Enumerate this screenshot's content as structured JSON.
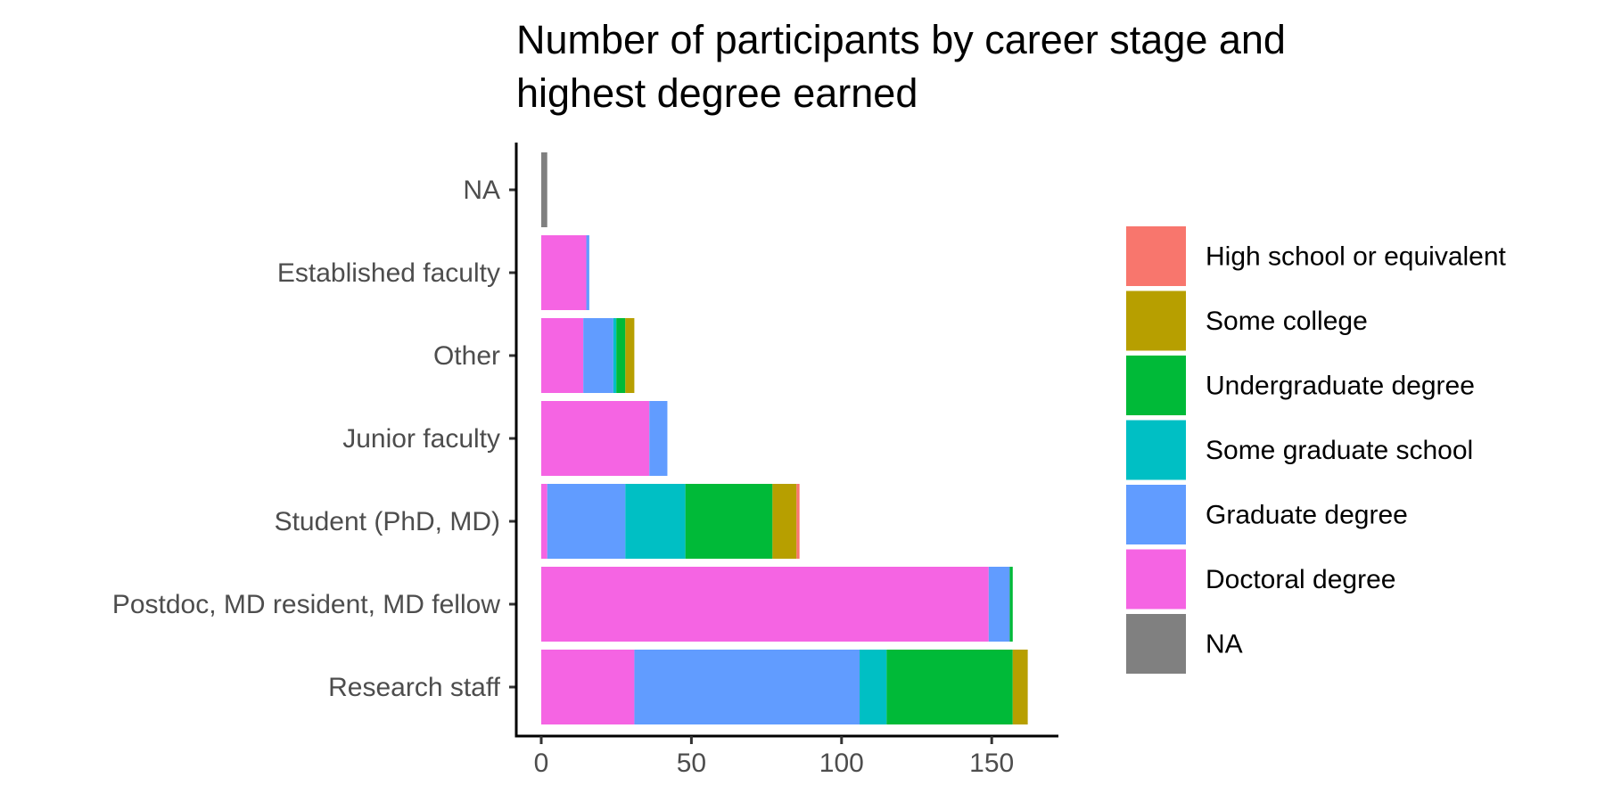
{
  "chart_data": {
    "type": "bar",
    "orientation": "horizontal",
    "stacked": true,
    "title": "Number of participants by career stage and highest degree earned",
    "title_lines": [
      "Number of participants by career stage and",
      "highest degree earned"
    ],
    "xlabel": "",
    "ylabel": "",
    "xlim": [
      -8,
      173
    ],
    "x_ticks": [
      0,
      50,
      100,
      150
    ],
    "grid": false,
    "legend_position": "right",
    "categories": [
      "NA",
      "Established faculty",
      "Other",
      "Junior faculty",
      "Student (PhD, MD)",
      "Postdoc, MD resident, MD fellow",
      "Research staff"
    ],
    "series": [
      {
        "name": "High school or equivalent",
        "color": "#F8766D",
        "values": [
          0,
          0,
          0,
          0,
          1,
          0,
          0
        ]
      },
      {
        "name": "Some college",
        "color": "#B79F00",
        "values": [
          0,
          0,
          3,
          0,
          8,
          0,
          5
        ]
      },
      {
        "name": "Undergraduate degree",
        "color": "#00BA38",
        "values": [
          0,
          0,
          3,
          0,
          29,
          1,
          42
        ]
      },
      {
        "name": "Some graduate school",
        "color": "#00BFC4",
        "values": [
          0,
          0,
          1,
          0,
          20,
          0,
          9
        ]
      },
      {
        "name": "Graduate degree",
        "color": "#619CFF",
        "values": [
          0,
          1,
          10,
          6,
          26,
          7,
          75
        ]
      },
      {
        "name": "Doctoral degree",
        "color": "#F564E3",
        "values": [
          0,
          15,
          14,
          36,
          2,
          149,
          31
        ]
      },
      {
        "name": "NA",
        "color": "#808080",
        "values": [
          2,
          0,
          0,
          0,
          0,
          0,
          0
        ]
      }
    ]
  }
}
